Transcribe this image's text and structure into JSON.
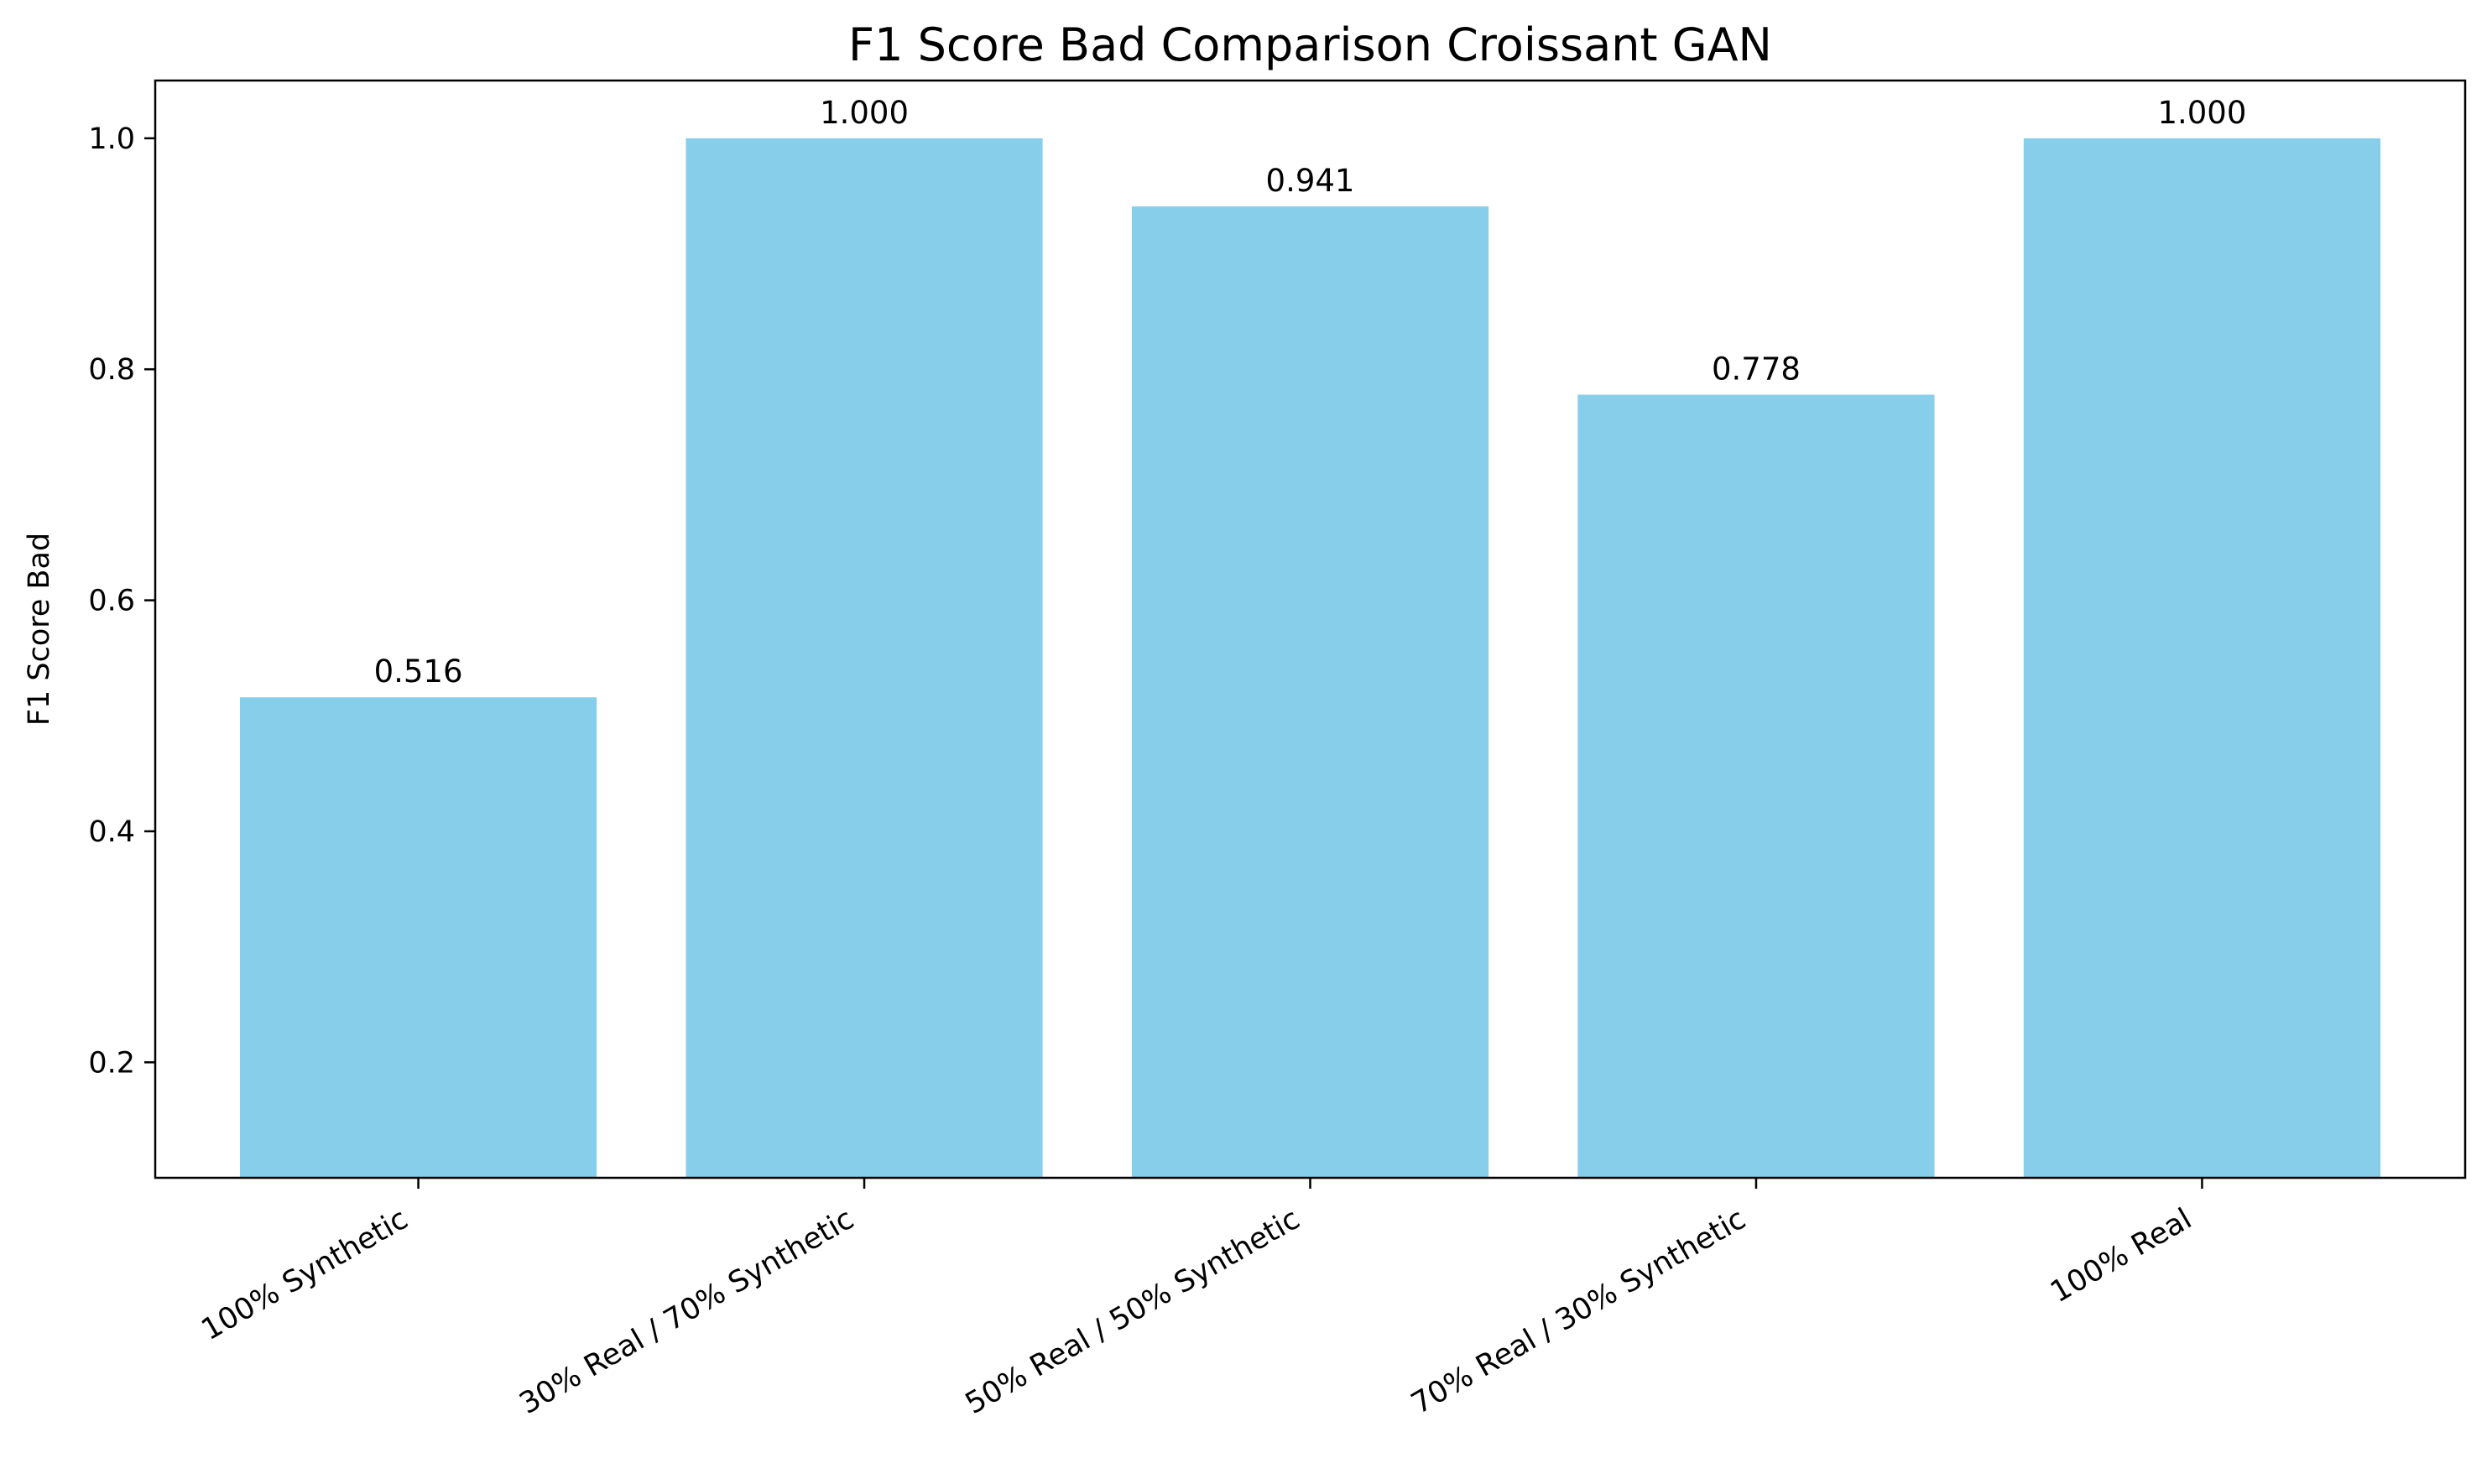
{
  "chart_data": {
    "type": "bar",
    "title": "F1 Score Bad Comparison Croissant GAN",
    "xlabel": "",
    "ylabel": "F1 Score Bad",
    "categories": [
      "100% Synthetic",
      "30% Real / 70% Synthetic",
      "50% Real / 50% Synthetic",
      "70% Real / 30% Synthetic",
      "100% Real"
    ],
    "values": [
      0.516,
      1.0,
      0.941,
      0.778,
      1.0
    ],
    "data_labels": [
      "0.516",
      "1.000",
      "0.941",
      "0.778",
      "1.000"
    ],
    "ylim": [
      0.1,
      1.05
    ],
    "yticks": [
      0.2,
      0.4,
      0.6,
      0.8,
      1.0
    ],
    "ytick_labels": [
      "0.2",
      "0.4",
      "0.6",
      "0.8",
      "1.0"
    ],
    "bar_color": "#87CEEB",
    "grid": false,
    "legend": "none"
  }
}
